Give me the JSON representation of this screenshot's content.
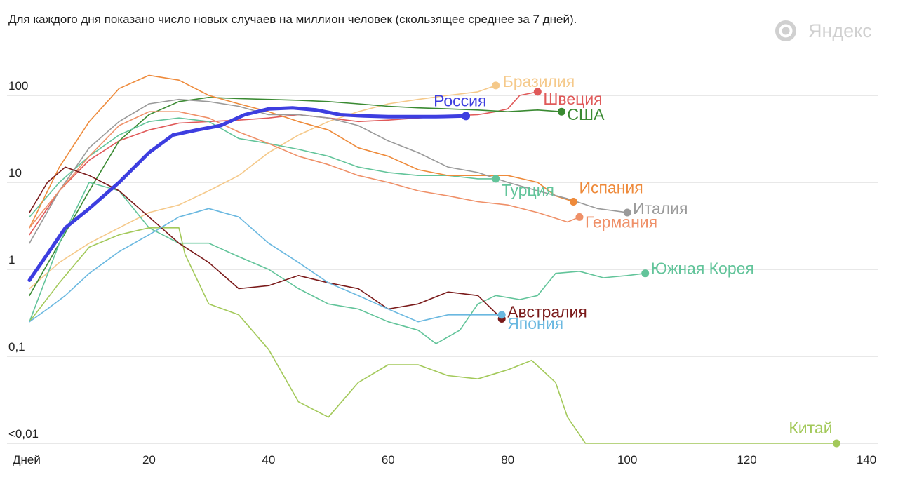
{
  "header": {
    "subtitle": "Для каждого дня показано число новых случаев на миллион человек (скользящее среднее за 7 дней).",
    "brand_text": "Яндекс",
    "brand_icon": "yandex-logo-icon"
  },
  "chart_data": {
    "type": "line",
    "title": "",
    "xlabel": "Дней",
    "ylabel": "",
    "yscale": "log",
    "xlim": [
      0,
      140
    ],
    "ylim": [
      0.01,
      100
    ],
    "grid": true,
    "x_ticks": [
      {
        "value": 0,
        "label": "Дней"
      },
      {
        "value": 20,
        "label": "20"
      },
      {
        "value": 40,
        "label": "40"
      },
      {
        "value": 60,
        "label": "60"
      },
      {
        "value": 80,
        "label": "80"
      },
      {
        "value": 100,
        "label": "100"
      },
      {
        "value": 120,
        "label": "120"
      },
      {
        "value": 140,
        "label": "140"
      }
    ],
    "y_ticks": [
      {
        "value": 100,
        "label": "100"
      },
      {
        "value": 10,
        "label": "10"
      },
      {
        "value": 1,
        "label": "1"
      },
      {
        "value": 0.1,
        "label": "0,1"
      },
      {
        "value": 0.01,
        "label": "<0,01"
      }
    ],
    "series": [
      {
        "name": "Бразилия",
        "color": "#f5c98a",
        "x": [
          0,
          5,
          10,
          15,
          20,
          25,
          30,
          35,
          40,
          45,
          50,
          55,
          60,
          65,
          70,
          75,
          78
        ],
        "y": [
          0.6,
          1.2,
          2,
          3,
          4.5,
          5.5,
          8,
          12,
          22,
          35,
          50,
          65,
          80,
          90,
          100,
          110,
          130
        ]
      },
      {
        "name": "Швеция",
        "color": "#e05a5a",
        "x": [
          0,
          5,
          10,
          15,
          20,
          25,
          30,
          35,
          40,
          45,
          50,
          55,
          60,
          65,
          70,
          75,
          78,
          80,
          82,
          85
        ],
        "y": [
          2.5,
          8,
          18,
          30,
          40,
          48,
          50,
          52,
          55,
          60,
          55,
          50,
          52,
          55,
          58,
          60,
          65,
          70,
          100,
          110
        ]
      },
      {
        "name": "США",
        "color": "#3a8a32",
        "x": [
          0,
          5,
          10,
          15,
          20,
          25,
          30,
          35,
          40,
          45,
          50,
          55,
          60,
          65,
          70,
          75,
          80,
          85,
          89
        ],
        "y": [
          0.5,
          2,
          8,
          30,
          60,
          85,
          95,
          92,
          90,
          88,
          85,
          80,
          75,
          72,
          70,
          68,
          65,
          68,
          65
        ]
      },
      {
        "name": "Турция",
        "color": "#62c49a",
        "x": [
          0,
          5,
          10,
          15,
          20,
          25,
          30,
          35,
          40,
          45,
          50,
          55,
          60,
          65,
          70,
          75,
          78
        ],
        "y": [
          4,
          10,
          20,
          35,
          50,
          55,
          50,
          32,
          28,
          24,
          20,
          15,
          13,
          12,
          12,
          11,
          11
        ]
      },
      {
        "name": "Испания",
        "color": "#ee8a3a",
        "x": [
          0,
          5,
          10,
          15,
          20,
          25,
          30,
          35,
          40,
          45,
          50,
          55,
          60,
          65,
          70,
          75,
          80,
          85,
          88,
          91
        ],
        "y": [
          3,
          15,
          50,
          120,
          170,
          150,
          100,
          80,
          65,
          50,
          40,
          25,
          20,
          14,
          12,
          12,
          12,
          10,
          7,
          6
        ]
      },
      {
        "name": "Италия",
        "color": "#9a9a9a",
        "x": [
          0,
          5,
          10,
          15,
          20,
          25,
          30,
          35,
          40,
          45,
          50,
          55,
          60,
          65,
          70,
          75,
          80,
          85,
          90,
          95,
          100
        ],
        "y": [
          2,
          8,
          25,
          50,
          80,
          90,
          85,
          75,
          60,
          60,
          55,
          45,
          30,
          22,
          15,
          13,
          10,
          8,
          6.5,
          5,
          4.5
        ]
      },
      {
        "name": "Германия",
        "color": "#ef9068",
        "x": [
          0,
          5,
          10,
          15,
          20,
          25,
          30,
          35,
          40,
          45,
          50,
          55,
          60,
          65,
          70,
          75,
          80,
          85,
          90,
          92
        ],
        "y": [
          3,
          8,
          20,
          45,
          65,
          65,
          55,
          38,
          28,
          20,
          16,
          12,
          10,
          8,
          7,
          6,
          5.5,
          4.5,
          3.5,
          4
        ]
      },
      {
        "name": "Россия",
        "color": "#3d3ee0",
        "x": [
          0,
          3,
          6,
          10,
          15,
          20,
          24,
          28,
          32,
          36,
          40,
          44,
          48,
          52,
          56,
          60,
          64,
          68,
          73
        ],
        "y": [
          0.75,
          1.5,
          3,
          5,
          10,
          22,
          35,
          40,
          45,
          60,
          70,
          72,
          68,
          60,
          58,
          57,
          57,
          57,
          58
        ]
      },
      {
        "name": "Южная Корея",
        "color": "#62c49a",
        "x": [
          0,
          5,
          10,
          15,
          20,
          25,
          30,
          35,
          40,
          45,
          50,
          55,
          60,
          65,
          68,
          72,
          75,
          78,
          82,
          85,
          88,
          92,
          96,
          100,
          103
        ],
        "y": [
          0.25,
          2,
          10,
          8,
          3,
          2,
          2,
          1.4,
          1,
          0.6,
          0.4,
          0.35,
          0.25,
          0.2,
          0.14,
          0.2,
          0.4,
          0.5,
          0.45,
          0.5,
          0.9,
          0.95,
          0.8,
          0.85,
          0.9
        ]
      },
      {
        "name": "Китай",
        "color": "#a3c95a",
        "x": [
          0,
          5,
          10,
          15,
          20,
          25,
          26,
          30,
          35,
          40,
          45,
          50,
          55,
          60,
          65,
          70,
          75,
          80,
          84,
          88,
          90,
          93,
          100,
          110,
          120,
          135
        ],
        "y": [
          0.25,
          0.7,
          1.8,
          2.5,
          3,
          3,
          1.5,
          0.4,
          0.3,
          0.12,
          0.03,
          0.02,
          0.05,
          0.08,
          0.08,
          0.06,
          0.055,
          0.07,
          0.09,
          0.05,
          0.02,
          0.01,
          0.01,
          0.01,
          0.01,
          0.01
        ]
      },
      {
        "name": "Австралия",
        "color": "#7a1a1a",
        "x": [
          0,
          3,
          6,
          10,
          15,
          20,
          25,
          30,
          35,
          40,
          45,
          50,
          55,
          60,
          65,
          70,
          75,
          79
        ],
        "y": [
          4.5,
          10,
          15,
          12,
          8,
          4,
          2,
          1.2,
          0.6,
          0.65,
          0.85,
          0.7,
          0.6,
          0.35,
          0.4,
          0.55,
          0.5,
          0.27
        ]
      },
      {
        "name": "Япония",
        "color": "#6ab8e0",
        "x": [
          0,
          3,
          6,
          10,
          15,
          20,
          25,
          30,
          35,
          40,
          45,
          50,
          55,
          60,
          65,
          70,
          75,
          79
        ],
        "y": [
          0.25,
          0.35,
          0.5,
          0.9,
          1.6,
          2.5,
          4,
          5,
          4,
          2,
          1.2,
          0.7,
          0.5,
          0.35,
          0.25,
          0.3,
          0.3,
          0.3
        ]
      }
    ]
  }
}
